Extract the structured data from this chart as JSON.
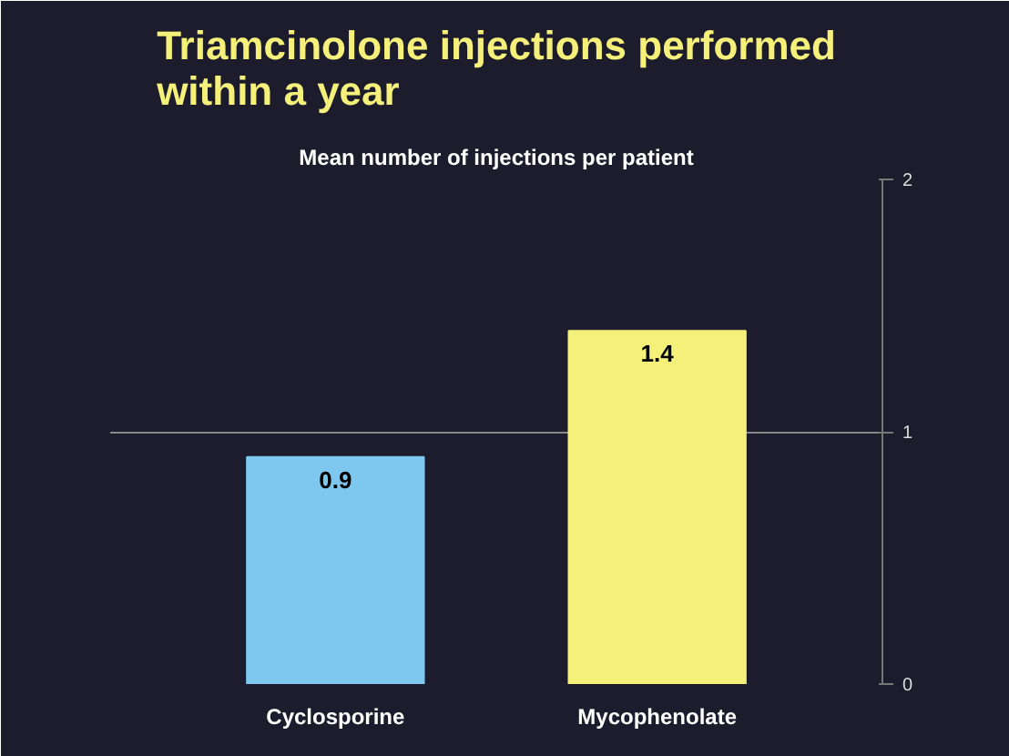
{
  "chart_data": {
    "type": "bar",
    "title": "Triamcinolone injections performed within a year",
    "subtitle": "Mean number of injections per patient",
    "categories": [
      "Cyclosporine",
      "Mycophenolate"
    ],
    "values": [
      0.9,
      1.4
    ],
    "colors": [
      "#7ec8f0",
      "#f5f07a"
    ],
    "ylim": [
      0,
      2
    ],
    "yticks": [
      0,
      1,
      2
    ],
    "grid": "y",
    "data_labels": true
  }
}
